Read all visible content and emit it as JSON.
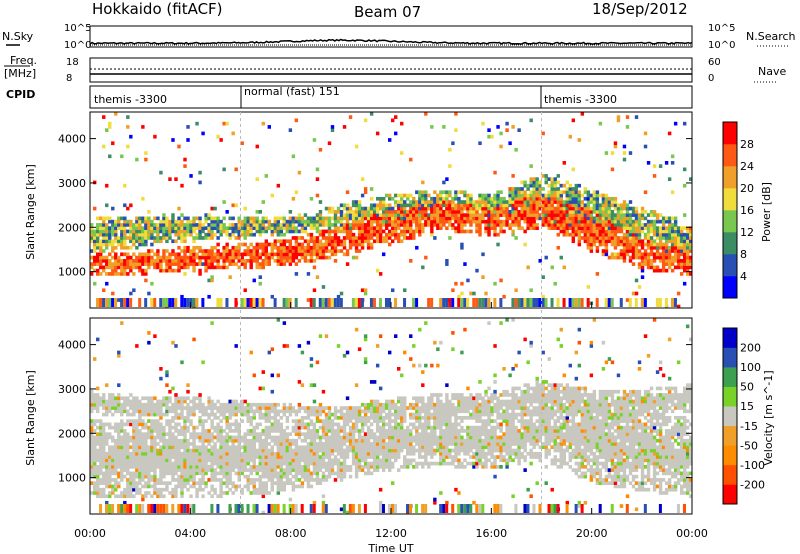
{
  "header": {
    "title": "Hokkaido (fitACF)",
    "beam": "Beam 07",
    "date": "18/Sep/2012"
  },
  "top_panels": {
    "nsky_label": "N.Sky",
    "nsearch_label": "N.Search",
    "nsky_ticks": [
      "10^5",
      "10^0"
    ],
    "nsky_right_ticks": [
      "10^5",
      "10^0"
    ],
    "freq_label": "Freq.",
    "freq_unit": "[MHz]",
    "freq_ticks": [
      "18",
      "8"
    ],
    "nave_label": "Nave",
    "nave_ticks": [
      "60",
      "0"
    ],
    "cpid_label": "CPID",
    "cpid_segments": [
      {
        "label": "themis -3300",
        "start_hour": 0
      },
      {
        "label": "normal (fast) 151",
        "start_hour": 6
      },
      {
        "label": "themis -3300",
        "start_hour": 18
      }
    ]
  },
  "chart_data": [
    {
      "type": "heatmap",
      "quantity": "Power",
      "ylabel": "Slant Range [km]",
      "colorbar_label": "Power [dB]",
      "colorbar_ticks": [
        "4",
        "8",
        "12",
        "16",
        "20",
        "24",
        "28"
      ],
      "colorbar_range": [
        0,
        32
      ],
      "x_range_hours": [
        0,
        24
      ],
      "ylim": [
        180,
        4600
      ],
      "yticks": [
        "1000",
        "2000",
        "3000",
        "4000"
      ],
      "colors": [
        "#0000ff",
        "#2850b4",
        "#3c8c64",
        "#78c850",
        "#f0dc3c",
        "#f0a028",
        "#ff5a14",
        "#ff0000"
      ],
      "echo_bands": [
        {
          "hours": [
            0,
            2,
            4,
            6,
            8,
            10,
            12,
            14,
            16,
            18,
            20,
            22,
            24
          ],
          "range_km": [
            1150,
            1200,
            1300,
            1350,
            1450,
            1700,
            2000,
            2300,
            2100,
            2400,
            1900,
            1400,
            1200
          ],
          "width_km": [
            260,
            260,
            280,
            300,
            300,
            350,
            400,
            350,
            300,
            400,
            450,
            350,
            300
          ],
          "power_db": 29
        },
        {
          "hours": [
            0,
            2,
            4,
            6,
            8,
            10,
            12,
            14,
            16,
            18,
            20,
            22,
            24
          ],
          "range_km": [
            1800,
            1900,
            2000,
            2000,
            2050,
            2200,
            2450,
            2550,
            2500,
            2700,
            2350,
            2000,
            1700
          ],
          "width_km": [
            400,
            350,
            300,
            250,
            200,
            300,
            300,
            300,
            250,
            500,
            500,
            450,
            400
          ],
          "power_db": 14
        }
      ]
    },
    {
      "type": "heatmap",
      "quantity": "Velocity",
      "ylabel": "Slant Range [km]",
      "xlabel": "Time UT",
      "colorbar_label": "Velocity [m s^-1]",
      "colorbar_ticks": [
        "-200",
        "-100",
        "-50",
        "-15",
        "15",
        "50",
        "100",
        "200"
      ],
      "colorbar_range": [
        -250,
        250
      ],
      "x_range_hours": [
        0,
        24
      ],
      "xticks": [
        "00:00",
        "04:00",
        "08:00",
        "12:00",
        "16:00",
        "20:00",
        "00:00"
      ],
      "ylim": [
        180,
        4600
      ],
      "yticks": [
        "1000",
        "2000",
        "3000",
        "4000"
      ],
      "colors": [
        "#ff0000",
        "#ff5000",
        "#ff8c00",
        "#f0a028",
        "#c8c8c0",
        "#78d228",
        "#3ca050",
        "#2850b4",
        "#0000c8"
      ],
      "echo_bands": [
        {
          "hours": [
            0,
            2,
            4,
            6,
            8,
            10,
            12,
            14,
            16,
            18,
            20,
            22,
            24
          ],
          "range_km": [
            1450,
            1450,
            1450,
            1450,
            1500,
            1650,
            1800,
            1850,
            1750,
            2100,
            1800,
            1600,
            1450
          ],
          "width_km": [
            900,
            900,
            900,
            850,
            800,
            700,
            650,
            600,
            550,
            700,
            900,
            900,
            900
          ],
          "velocity": 0
        },
        {
          "hours": [
            0,
            2,
            4,
            6,
            8,
            10,
            12,
            14,
            16,
            18,
            20,
            22,
            24
          ],
          "range_km": [
            2700,
            2600,
            2600,
            2550,
            2500,
            2450,
            2550,
            2600,
            2600,
            2800,
            2700,
            2700,
            2800
          ],
          "width_km": [
            250,
            250,
            250,
            200,
            150,
            150,
            250,
            300,
            300,
            400,
            300,
            300,
            300
          ],
          "velocity": 0
        }
      ]
    }
  ]
}
